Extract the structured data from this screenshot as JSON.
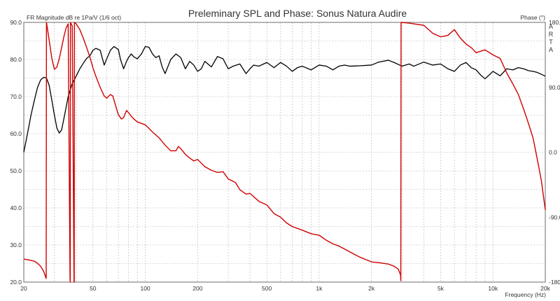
{
  "chart_data": {
    "type": "line",
    "title": "Preleminary SPL and Phase: Sonus Natura Audire",
    "ylabel_left": "FR Magnitude dB re 1Pa/V (1/6 oct)",
    "ylabel_right": "Phase (°)",
    "xlabel": "Frequency (Hz)",
    "watermark": [
      "A",
      "R",
      "T",
      "A"
    ],
    "x_scale": "log",
    "xlim": [
      20,
      20000
    ],
    "ylim_left": [
      20,
      90
    ],
    "ylim_right": [
      -180,
      180
    ],
    "grid": true,
    "x_ticks": [
      {
        "value": 20,
        "label": "20"
      },
      {
        "value": 50,
        "label": "50"
      },
      {
        "value": 100,
        "label": "100"
      },
      {
        "value": 200,
        "label": "200"
      },
      {
        "value": 500,
        "label": "500"
      },
      {
        "value": 1000,
        "label": "1k"
      },
      {
        "value": 2000,
        "label": "2k"
      },
      {
        "value": 5000,
        "label": "5k"
      },
      {
        "value": 10000,
        "label": "10k"
      },
      {
        "value": 20000,
        "label": "20k"
      }
    ],
    "y_ticks_left": [
      {
        "value": 90,
        "label": "90.0"
      },
      {
        "value": 80,
        "label": "80.0"
      },
      {
        "value": 70,
        "label": "70.0"
      },
      {
        "value": 60,
        "label": "60.0"
      },
      {
        "value": 50,
        "label": "50.0"
      },
      {
        "value": 40,
        "label": "40.0"
      },
      {
        "value": 30,
        "label": "30.0"
      },
      {
        "value": 20,
        "label": "20.0"
      }
    ],
    "y_ticks_right": [
      {
        "value": 180,
        "label": "180.0"
      },
      {
        "value": 90,
        "label": "90.0"
      },
      {
        "value": 0,
        "label": "0.0"
      },
      {
        "value": -90,
        "label": "-90.0"
      },
      {
        "value": -180,
        "label": "-180.0"
      }
    ],
    "series": [
      {
        "color": "#000000",
        "axis": "left",
        "x": [
          20,
          21,
          22,
          23,
          24,
          25,
          26,
          27,
          28,
          29,
          30,
          31,
          32,
          33,
          34,
          35,
          36,
          38,
          40,
          42,
          44,
          46,
          48,
          50,
          52,
          55,
          58,
          60,
          63,
          66,
          70,
          72,
          75,
          78,
          80,
          83,
          86,
          90,
          95,
          100,
          105,
          110,
          115,
          120,
          125,
          130,
          140,
          150,
          160,
          170,
          180,
          190,
          200,
          210,
          220,
          240,
          260,
          280,
          300,
          320,
          350,
          380,
          400,
          420,
          450,
          500,
          550,
          600,
          650,
          700,
          750,
          800,
          900,
          1000,
          1100,
          1200,
          1300,
          1400,
          1500,
          1700,
          2000,
          2200,
          2500,
          2700,
          3000,
          3300,
          3500,
          4000,
          4500,
          5000,
          5500,
          6000,
          6500,
          7000,
          7500,
          8000,
          8500,
          9000,
          9500,
          10000,
          10500,
          11000,
          12000,
          13000,
          14000,
          15000,
          16000,
          17000,
          18000,
          19000,
          20000
        ],
        "y": [
          55,
          60,
          65,
          69,
          72.5,
          74.5,
          75.2,
          75,
          73,
          69,
          65,
          61.5,
          60.2,
          61,
          64,
          67,
          70,
          73.5,
          75.5,
          77.5,
          79,
          80.3,
          81,
          82.5,
          83,
          82.5,
          78.5,
          80.2,
          82.5,
          83.5,
          82.7,
          80,
          77.5,
          79.5,
          80.5,
          81.5,
          80.7,
          80.2,
          81.5,
          83.5,
          83.3,
          81.5,
          80.5,
          81,
          78,
          76.2,
          80,
          81.5,
          80.5,
          77.5,
          79.5,
          78.5,
          76.8,
          77.5,
          79.5,
          78,
          80.8,
          80.2,
          77.5,
          78.2,
          78.8,
          76.2,
          77.5,
          78.5,
          78.2,
          79.2,
          77.8,
          79.2,
          78.2,
          76.8,
          77.8,
          78.2,
          77.2,
          78.5,
          78.2,
          77.2,
          78.2,
          78.5,
          78.2,
          78.3,
          78.5,
          79.3,
          79.8,
          79.2,
          78.2,
          78.8,
          78.2,
          79.3,
          78.5,
          78.8,
          77.5,
          76.8,
          78.5,
          79.2,
          77.8,
          77.2,
          75.8,
          74.8,
          75.8,
          76.8,
          76.2,
          75.6,
          77.5,
          77.2,
          77.8,
          77.5,
          77.0,
          76.8,
          76.5,
          76.0,
          75.5
        ]
      },
      {
        "color": "#d00000",
        "axis": "right",
        "x": [
          20,
          21,
          22,
          23,
          24,
          25,
          26,
          26.9,
          27,
          27.1,
          28,
          29,
          30,
          31,
          32,
          33,
          34,
          35,
          36,
          36.9,
          37,
          37.1,
          38,
          38.9,
          39,
          39.1,
          40,
          42,
          44,
          46,
          48,
          50,
          52,
          55,
          58,
          60,
          63,
          65,
          68,
          70,
          73,
          75,
          78,
          80,
          83,
          86,
          90,
          95,
          100,
          105,
          110,
          120,
          130,
          140,
          150,
          155,
          160,
          170,
          180,
          190,
          200,
          220,
          240,
          260,
          280,
          300,
          330,
          350,
          380,
          400,
          450,
          500,
          550,
          600,
          650,
          700,
          800,
          900,
          1000,
          1100,
          1200,
          1300,
          1500,
          1700,
          2000,
          2200,
          2500,
          2700,
          2850,
          2940,
          2950,
          2960,
          3000,
          3300,
          3500,
          4000,
          4500,
          5000,
          5500,
          6000,
          6500,
          7000,
          7500,
          8000,
          9000,
          10000,
          11000,
          12000,
          13000,
          14000,
          15000,
          16000,
          17000,
          18000,
          19000,
          20000
        ],
        "y": [
          -148,
          -149,
          -150,
          -151,
          -154,
          -158,
          -165,
          -175,
          180,
          178,
          155,
          130,
          115,
          118,
          130,
          145,
          160,
          172,
          178,
          -175,
          -180,
          180,
          175,
          -180,
          -180,
          180,
          178,
          170,
          158,
          145,
          132,
          117,
          105,
          90,
          78,
          75,
          80,
          78,
          62,
          52,
          46,
          48,
          58,
          55,
          50,
          46,
          42,
          40,
          38,
          33,
          28,
          20,
          10,
          2,
          2,
          8,
          5,
          -3,
          -8,
          -12,
          -10,
          -20,
          -25,
          -28,
          -27,
          -37,
          -42,
          -52,
          -58,
          -57,
          -68,
          -73,
          -85,
          -90,
          -98,
          -103,
          -108,
          -113,
          -115,
          -122,
          -127,
          -130,
          -138,
          -145,
          -152,
          -153,
          -155,
          -158,
          -162,
          -170,
          -178,
          180,
          180,
          179,
          178,
          176,
          165,
          160,
          162,
          170,
          158,
          150,
          145,
          138,
          142,
          135,
          130,
          110,
          95,
          80,
          60,
          40,
          20,
          -10,
          -40,
          -80
        ]
      }
    ]
  }
}
